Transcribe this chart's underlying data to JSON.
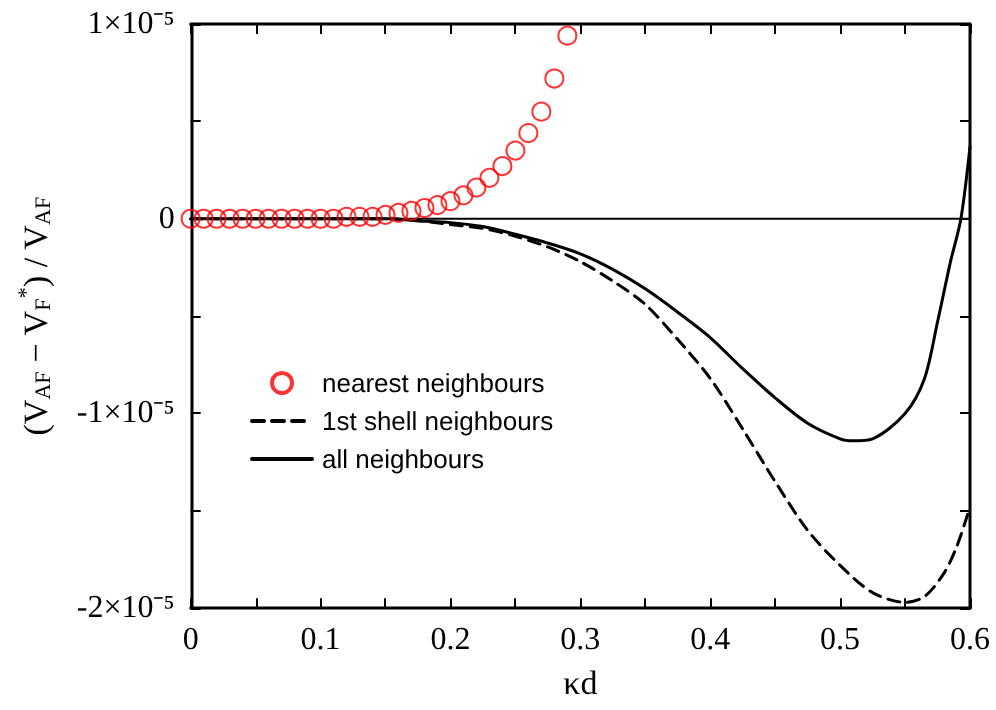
{
  "chart_data": {
    "type": "line",
    "xlabel": "κd",
    "ylabel": "(V$_{AF}$ − V$_{F}$$^{*}$) / V$_{AF}$",
    "xlim": [
      0,
      0.6
    ],
    "xticks": [
      0,
      {
        "value": 0.05,
        "label": null
      },
      0.1,
      {
        "value": 0.15,
        "label": null
      },
      0.2,
      {
        "value": 0.25,
        "label": null
      },
      0.3,
      {
        "value": 0.35,
        "label": null
      },
      0.4,
      {
        "value": 0.45,
        "label": null
      },
      0.5,
      {
        "value": 0.55,
        "label": null
      },
      0.6
    ],
    "ylim": [
      -2e-05,
      1e-05
    ],
    "yticks": [
      {
        "value": -2e-05,
        "label": "-2×10⁻⁵"
      },
      {
        "value": -1.5e-05,
        "label": null
      },
      {
        "value": -1e-05,
        "label": "-1×10⁻⁵"
      },
      {
        "value": -5e-06,
        "label": null
      },
      0,
      {
        "value": 5e-06,
        "label": null
      },
      {
        "value": 1e-05,
        "label": "1×10⁻⁵"
      }
    ],
    "grid": false,
    "legend": "left",
    "ref_lines": [
      {
        "axis": "y",
        "value": 0,
        "label": null,
        "color": "#000000"
      }
    ],
    "series": [
      {
        "name": "nearest neighbours",
        "type": "scatter",
        "color": "#ff0000",
        "marker": "circle",
        "x": [
          0,
          0.01,
          0.02,
          0.03,
          0.04,
          0.05,
          0.06,
          0.07,
          0.08,
          0.09,
          0.1,
          0.11,
          0.12,
          0.13,
          0.14,
          0.15,
          0.16,
          0.17,
          0.18,
          0.19,
          0.2,
          0.21,
          0.22,
          0.23,
          0.24,
          0.25,
          0.26,
          0.27,
          0.28,
          0.29
        ],
        "values": [
          0,
          0,
          0,
          0,
          0,
          0,
          0,
          0,
          0,
          0,
          0,
          0,
          1e-07,
          1e-07,
          1e-07,
          2e-07,
          3e-07,
          4e-07,
          5.5e-07,
          7e-07,
          9e-07,
          1.2e-06,
          1.6e-06,
          2.1e-06,
          2.7e-06,
          3.5e-06,
          4.4e-06,
          5.5e-06,
          7.2e-06,
          9.4e-06
        ]
      },
      {
        "name": "1st shell neighbours",
        "color": "#000000",
        "line_style": "dashed",
        "x": [
          0,
          0.1,
          0.15,
          0.175,
          0.2,
          0.225,
          0.25,
          0.275,
          0.3,
          0.325,
          0.35,
          0.375,
          0.4,
          0.425,
          0.45,
          0.475,
          0.5,
          0.525,
          0.55,
          0.565,
          0.58,
          0.59,
          0.6
        ],
        "values": [
          0,
          0,
          0,
          -1e-07,
          -3e-07,
          -5e-07,
          -9e-07,
          -1.45e-06,
          -2.2e-06,
          -3.2e-06,
          -4.4e-06,
          -6.2e-06,
          -8.2e-06,
          -1.08e-05,
          -1.35e-05,
          -1.6e-05,
          -1.78e-05,
          -1.92e-05,
          -1.97e-05,
          -1.94e-05,
          -1.82e-05,
          -1.68e-05,
          -1.48e-05
        ]
      },
      {
        "name": "all neighbours",
        "color": "#000000",
        "line_style": "solid",
        "x": [
          0,
          0.1,
          0.15,
          0.175,
          0.2,
          0.225,
          0.25,
          0.275,
          0.3,
          0.325,
          0.35,
          0.375,
          0.4,
          0.425,
          0.45,
          0.475,
          0.5,
          0.51,
          0.525,
          0.55,
          0.565,
          0.575,
          0.585,
          0.593,
          0.6
        ],
        "values": [
          0,
          0,
          0,
          -1e-07,
          -2e-07,
          -4e-07,
          -8e-07,
          -1.25e-06,
          -1.8e-06,
          -2.6e-06,
          -3.6e-06,
          -4.8e-06,
          -6.1e-06,
          -7.7e-06,
          -9.2e-06,
          -1.05e-05,
          -1.13e-05,
          -1.14e-05,
          -1.13e-05,
          -1e-05,
          -8.2e-06,
          -5.3e-06,
          -2.2e-06,
          0,
          3.7e-06
        ]
      }
    ]
  }
}
